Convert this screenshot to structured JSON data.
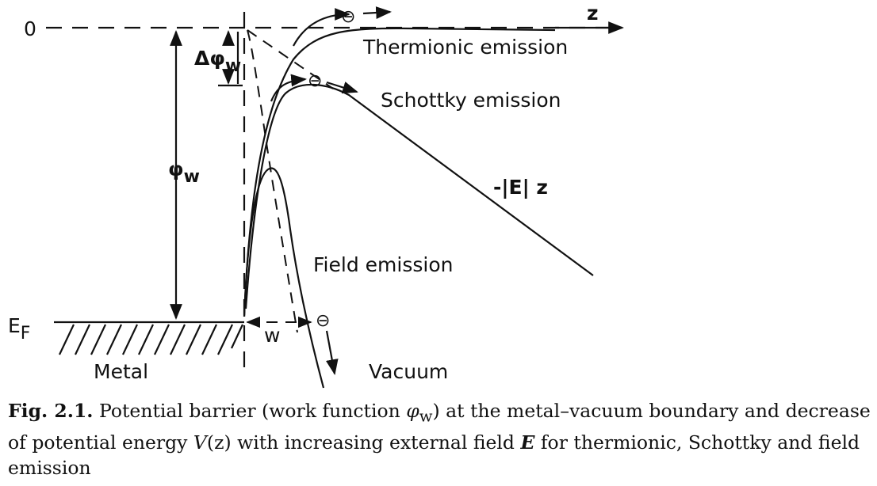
{
  "figure": {
    "labels": {
      "zero": "0",
      "z_axis": "z",
      "delta_phi": "Δφ",
      "delta_phi_sub": "w",
      "phi": "φ",
      "phi_sub": "w",
      "fermi": "E",
      "fermi_sub": "F",
      "width": "w",
      "field_slope": "-|E| z",
      "metal": "Metal",
      "vacuum": "Vacuum",
      "electron": "⊖"
    },
    "curves": {
      "thermionic": "Thermionic emission",
      "schottky": "Schottky emission",
      "field": "Field emission"
    }
  },
  "caption": {
    "label": "Fig. 2.1.",
    "text_1": " Potential barrier (work function ",
    "phi_symbol": "φ",
    "phi_sub": "w",
    "text_2": ") at the metal–vacuum boundary and decrease of potential energy ",
    "v_symbol": "V",
    "v_arg": "(z)",
    "text_3": " with increasing external field ",
    "e_symbol": "E",
    "text_4": " for thermionic, Schottky and field emission"
  }
}
